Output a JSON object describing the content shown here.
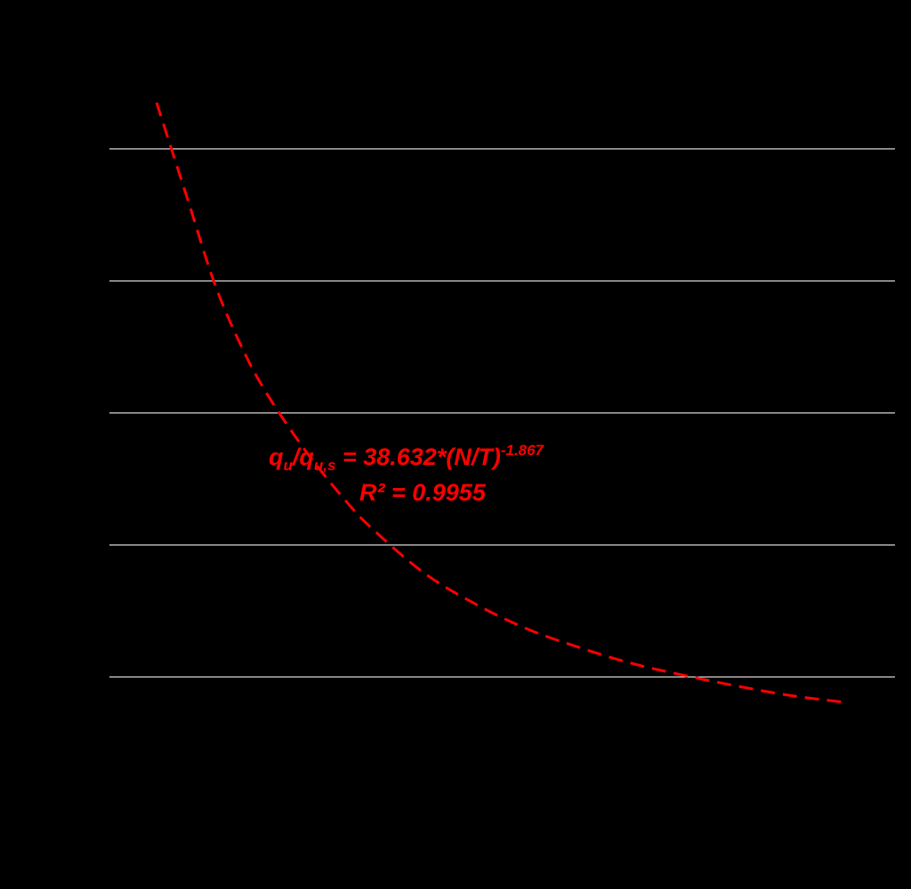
{
  "chart_data": {
    "type": "line",
    "title": "",
    "xlabel": "",
    "ylabel": "",
    "background": "#000000",
    "grid": "horizontal",
    "grid_color": "#d9d9d9",
    "ylim": [
      0,
      6
    ],
    "y_grid_values": [
      1,
      2,
      3,
      4,
      5
    ],
    "xlim": [
      0,
      6
    ],
    "series": [
      {
        "color": "#ff0000",
        "line_style": "dashed",
        "x": [
          0.36,
          0.6,
          0.8,
          1.0,
          1.2,
          1.5,
          1.8,
          2.0,
          2.4,
          2.8,
          3.2,
          3.6,
          4.0,
          4.4,
          4.8,
          5.2,
          5.6
        ],
        "y": [
          5.35,
          4.61,
          3.99,
          3.52,
          3.15,
          2.71,
          2.34,
          2.13,
          1.79,
          1.55,
          1.36,
          1.22,
          1.1,
          1.01,
          0.93,
          0.86,
          0.81
        ]
      }
    ],
    "annotations": {
      "equation": {
        "q1": "q",
        "sub1": "u",
        "slash": "/",
        "q2": "q",
        "sub2": "u,s",
        "rhs": " = 38.632*(N/T)",
        "exponent": "-1.867"
      },
      "r_squared": "R² = 0.9955",
      "color": "#ff0000"
    }
  }
}
